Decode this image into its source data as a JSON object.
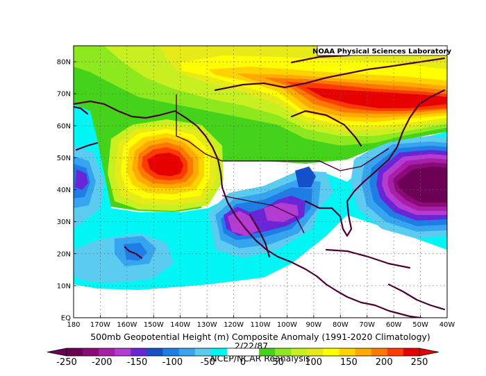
{
  "map": {
    "credit": "NOAA Physical Sciences Laboratory",
    "title": "500mb Geopotential Height (m) Composite Anomaly (1991-2020 Climatology)",
    "date": "2/22/87",
    "source": "NCEP/NCAR Reanalysis",
    "lat_labels": [
      "80N",
      "70N",
      "60N",
      "50N",
      "40N",
      "30N",
      "20N",
      "10N",
      "EQ"
    ],
    "lon_labels": [
      "180",
      "170W",
      "160W",
      "150W",
      "140W",
      "130W",
      "120W",
      "110W",
      "100W",
      "90W",
      "80W",
      "70W",
      "60W",
      "50W",
      "40W"
    ],
    "extent": {
      "lon_min": -180,
      "lon_max": -40,
      "lat_min": 0,
      "lat_max": 85
    }
  },
  "colorbar": {
    "labels": [
      "-250",
      "-200",
      "-150",
      "-100",
      "-50",
      "0",
      "50",
      "100",
      "150",
      "200",
      "250"
    ],
    "colors": [
      "#6b0055",
      "#8a0a7a",
      "#a81ea8",
      "#b43cd2",
      "#6a26d6",
      "#1450c8",
      "#1e7ee6",
      "#36a4ee",
      "#5ccbf0",
      "#00f5f5",
      "#ffffff",
      "#ffffff",
      "#44d21a",
      "#8ee81e",
      "#c8f020",
      "#e6ea18",
      "#ffff00",
      "#ffd200",
      "#ffaa00",
      "#ff7800",
      "#ff3c00",
      "#e60000"
    ]
  }
}
